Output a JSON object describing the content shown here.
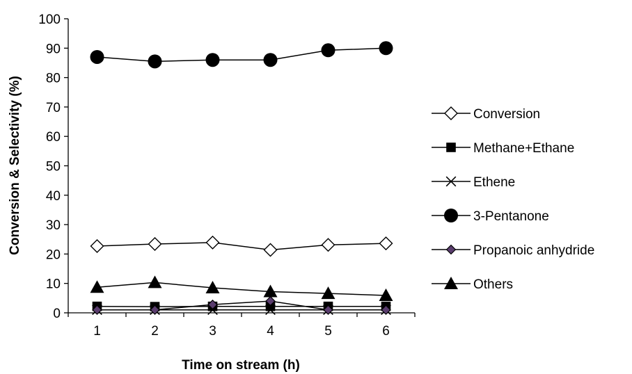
{
  "chart_data": {
    "type": "line",
    "title": "",
    "xlabel": "Time on stream (h)",
    "ylabel": "Conversion & Selectivity (%)",
    "x": [
      1,
      2,
      3,
      4,
      5,
      6
    ],
    "xlim": [
      1,
      6
    ],
    "ylim": [
      0,
      100
    ],
    "yticks": [
      0,
      10,
      20,
      30,
      40,
      50,
      60,
      70,
      80,
      90,
      100
    ],
    "grid": false,
    "legend_position": "right",
    "series": [
      {
        "name": "Conversion",
        "marker": "diamond-open",
        "color": "#000000",
        "values": [
          22.7,
          23.4,
          23.9,
          21.4,
          23.1,
          23.6
        ]
      },
      {
        "name": "Methane+Ethane",
        "marker": "square",
        "color": "#000000",
        "values": [
          2.2,
          2.1,
          2.2,
          2.2,
          2.2,
          2.2
        ]
      },
      {
        "name": "Ethene",
        "marker": "x",
        "color": "#000000",
        "values": [
          1.0,
          1.0,
          1.0,
          1.0,
          1.0,
          1.0
        ]
      },
      {
        "name": "3-Pentanone",
        "marker": "circle",
        "color": "#000000",
        "values": [
          87.0,
          85.5,
          86.0,
          86.0,
          89.3,
          90.0
        ]
      },
      {
        "name": "Propanoic anhydride",
        "marker": "diamond-purple",
        "color": "#000000",
        "marker_fill": "#5a3d6e",
        "values": [
          1.0,
          1.0,
          2.8,
          4.0,
          1.0,
          1.0
        ]
      },
      {
        "name": "Others",
        "marker": "triangle",
        "color": "#000000",
        "values": [
          8.7,
          10.3,
          8.5,
          7.2,
          6.6,
          5.9
        ]
      }
    ]
  }
}
